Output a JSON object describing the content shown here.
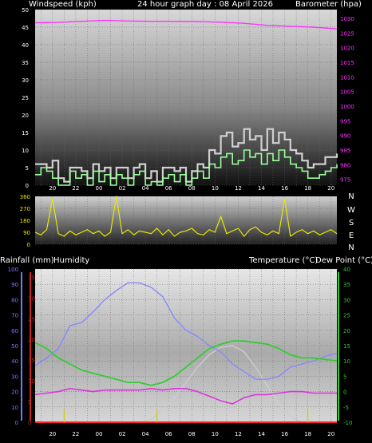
{
  "header": {
    "windspeed_label": "Windspeed (kph)",
    "graph_title": "24 hour graph day : 08 April 2026",
    "barometer_label": "Barometer (hpa)",
    "rainfall_label": "Rainfall (mm)",
    "humidity_label": "Humidity",
    "temperature_label": "Temperature (°C)",
    "dewpoint_label": "Dew Point (°C)"
  },
  "colors": {
    "windspeed": "#99ff99",
    "gust": "#d0d0d0",
    "barometer": "#ff33ff",
    "direction": "#e6e600",
    "humidity": "#8888ff",
    "temperature": "#33cc33",
    "dewpoint": "#dd33dd",
    "solar": "#cccccc",
    "rainfall": "#ff2222",
    "humidity_axis": "#7777ff",
    "rain_axis": "#cc2222",
    "temp_axis": "#33cc33",
    "grid": "#666666"
  },
  "x_tick_labels": [
    "20",
    "22",
    "00",
    "02",
    "04",
    "06",
    "08",
    "10",
    "12",
    "14",
    "16",
    "18",
    "20",
    "22",
    "00"
  ],
  "chart_data": [
    {
      "type": "line",
      "title": "24 hour graph day : 08 April 2026",
      "xlabel": "",
      "series": [
        {
          "name": "Windspeed (kph)",
          "axis": "left",
          "x_hours": [
            0,
            0.5,
            1,
            1.5,
            2,
            2.5,
            3,
            3.5,
            4,
            4.5,
            5,
            5.5,
            6,
            6.5,
            7,
            7.5,
            8,
            8.5,
            9,
            9.5,
            10,
            10.5,
            11,
            11.5,
            12,
            12.5,
            13,
            13.5,
            14,
            14.5,
            15,
            15.5,
            16,
            16.5,
            17,
            17.5,
            18,
            18.5,
            19,
            19.5,
            20,
            20.5,
            21,
            21.5,
            22,
            22.5,
            23,
            23.5,
            24,
            24.5,
            25,
            25.5,
            26
          ],
          "values": [
            3,
            5,
            4,
            2,
            0,
            0,
            4,
            2,
            3,
            0,
            4,
            1,
            3,
            0,
            3,
            2,
            0,
            3,
            4,
            0,
            1,
            0,
            2,
            3,
            1,
            3,
            0,
            2,
            4,
            2,
            6,
            5,
            8,
            9,
            6,
            7,
            10,
            8,
            9,
            6,
            9,
            7,
            10,
            8,
            6,
            5,
            4,
            2,
            2,
            3,
            4,
            5,
            6
          ]
        },
        {
          "name": "Gust (kph)",
          "axis": "left",
          "x_hours": [
            0,
            0.5,
            1,
            1.5,
            2,
            2.5,
            3,
            3.5,
            4,
            4.5,
            5,
            5.5,
            6,
            6.5,
            7,
            7.5,
            8,
            8.5,
            9,
            9.5,
            10,
            10.5,
            11,
            11.5,
            12,
            12.5,
            13,
            13.5,
            14,
            14.5,
            15,
            15.5,
            16,
            16.5,
            17,
            17.5,
            18,
            18.5,
            19,
            19.5,
            20,
            20.5,
            21,
            21.5,
            22,
            22.5,
            23,
            23.5,
            24,
            24.5,
            25,
            25.5,
            26
          ],
          "values": [
            6,
            6,
            5,
            7,
            2,
            1,
            5,
            5,
            4,
            2,
            6,
            4,
            5,
            2,
            5,
            5,
            2,
            5,
            6,
            2,
            4,
            1,
            5,
            5,
            4,
            5,
            1,
            4,
            6,
            5,
            10,
            9,
            14,
            15,
            11,
            12,
            16,
            13,
            14,
            10,
            16,
            12,
            15,
            13,
            10,
            9,
            7,
            5,
            6,
            6,
            8,
            8,
            9
          ]
        },
        {
          "name": "Barometer (hpa)",
          "axis": "right",
          "x_hours": [
            0,
            2,
            4,
            6,
            8,
            10,
            12,
            14,
            16,
            18,
            20,
            22,
            24,
            26
          ],
          "values": [
            1028.5,
            1028.6,
            1029.0,
            1029.3,
            1029.1,
            1029.0,
            1029.0,
            1028.9,
            1028.7,
            1028.3,
            1027.6,
            1027.3,
            1027.0,
            1026.4
          ]
        }
      ],
      "y_left": {
        "ticks": [
          0,
          5,
          10,
          15,
          20,
          25,
          30,
          35,
          40,
          45,
          50
        ],
        "range": [
          0,
          50
        ]
      },
      "y_right": {
        "ticks": [
          975,
          980,
          985,
          990,
          995,
          1000,
          1005,
          1010,
          1015,
          1020,
          1025,
          1030
        ],
        "range": [
          973,
          1033
        ]
      }
    },
    {
      "type": "line",
      "title": "",
      "xlabel": "",
      "series": [
        {
          "name": "Wind Direction",
          "x_hours": [
            0,
            0.5,
            1,
            1.5,
            2,
            2.5,
            3,
            3.5,
            4,
            4.5,
            5,
            5.5,
            6,
            6.5,
            7,
            7.5,
            8,
            8.5,
            9,
            9.5,
            10,
            10.5,
            11,
            11.5,
            12,
            12.5,
            13,
            13.5,
            14,
            14.5,
            15,
            15.5,
            16,
            16.5,
            17,
            17.5,
            18,
            18.5,
            19,
            19.5,
            20,
            20.5,
            21,
            21.5,
            22,
            22.5,
            23,
            23.5,
            24,
            24.5,
            25,
            25.5,
            26
          ],
          "values": [
            90,
            70,
            110,
            340,
            80,
            60,
            100,
            70,
            90,
            110,
            80,
            100,
            60,
            90,
            360,
            80,
            110,
            70,
            100,
            90,
            80,
            120,
            70,
            110,
            60,
            90,
            100,
            120,
            80,
            70,
            110,
            90,
            210,
            80,
            100,
            120,
            60,
            110,
            130,
            90,
            70,
            100,
            80,
            340,
            60,
            90,
            110,
            80,
            100,
            70,
            90,
            110,
            80
          ]
        }
      ],
      "y_left": {
        "ticks": [
          0,
          90,
          180,
          270,
          360
        ],
        "range": [
          0,
          360
        ]
      },
      "y_right_labels": [
        "N",
        "W",
        "S",
        "E",
        "N"
      ]
    },
    {
      "type": "line",
      "title": "",
      "xlabel": "",
      "series": [
        {
          "name": "Humidity",
          "axis": "humidity",
          "x_hours": [
            0,
            1,
            2,
            3,
            4,
            5,
            6,
            7,
            8,
            9,
            10,
            11,
            12,
            13,
            14,
            15,
            16,
            17,
            18,
            19,
            20,
            21,
            22,
            23,
            24,
            25,
            26
          ],
          "values": [
            37,
            42,
            48,
            63,
            65,
            72,
            80,
            86,
            91,
            91,
            88,
            82,
            68,
            60,
            56,
            50,
            46,
            38,
            33,
            28,
            28,
            30,
            36,
            38,
            40,
            43,
            45
          ]
        },
        {
          "name": "Temperature (°C)",
          "axis": "temperature",
          "x_hours": [
            0,
            1,
            2,
            3,
            4,
            5,
            6,
            7,
            8,
            9,
            10,
            11,
            12,
            13,
            14,
            15,
            16,
            17,
            18,
            19,
            20,
            21,
            22,
            23,
            24,
            25,
            26
          ],
          "values": [
            16,
            14,
            11,
            9,
            7,
            6,
            5,
            4,
            3,
            3,
            2,
            3,
            5,
            8,
            11,
            14,
            15.5,
            16.5,
            16.5,
            16,
            15.5,
            14,
            12,
            11,
            11,
            10.5,
            10
          ]
        },
        {
          "name": "Dew Point (°C)",
          "axis": "temperature",
          "x_hours": [
            0,
            1,
            2,
            3,
            4,
            5,
            6,
            7,
            8,
            9,
            10,
            11,
            12,
            13,
            14,
            15,
            16,
            17,
            18,
            19,
            20,
            21,
            22,
            23,
            24,
            25,
            26
          ],
          "values": [
            -1,
            -0.5,
            0,
            1,
            0.5,
            0,
            0.5,
            0.5,
            0.5,
            0.5,
            1,
            0.5,
            1,
            1,
            0,
            -1.5,
            -3,
            -4,
            -2,
            -1,
            -1,
            -0.5,
            0,
            0,
            -0.5,
            -0.5,
            -0.5
          ]
        },
        {
          "name": "Solar",
          "axis": "temperature",
          "x_hours": [
            0,
            9,
            10,
            11,
            12,
            13,
            14,
            15,
            16,
            17,
            18,
            19,
            20,
            21,
            22,
            23,
            24,
            26
          ],
          "values": [
            -10,
            -10,
            -9,
            -6,
            -2,
            3,
            8,
            12,
            14.5,
            15,
            13,
            8,
            2,
            -4,
            -8,
            -10,
            -10,
            -10
          ]
        },
        {
          "name": "Rainfall (mm)",
          "axis": "rain",
          "x_hours": [
            0,
            26
          ],
          "values": [
            0,
            0
          ]
        }
      ],
      "marker_hours": [
        2.5,
        10.5,
        23.5
      ],
      "y_humidity": {
        "ticks": [
          0,
          10,
          20,
          30,
          40,
          50,
          60,
          70,
          80,
          90,
          100
        ],
        "range": [
          0,
          100
        ]
      },
      "y_rain": {
        "ticks": [
          0,
          5,
          10,
          15,
          20,
          25,
          30,
          35
        ],
        "range": [
          0,
          37
        ]
      },
      "y_temperature": {
        "ticks": [
          -10,
          -5,
          0,
          5,
          10,
          15,
          20,
          25,
          30,
          35,
          40
        ],
        "range": [
          -10,
          40
        ]
      }
    }
  ]
}
